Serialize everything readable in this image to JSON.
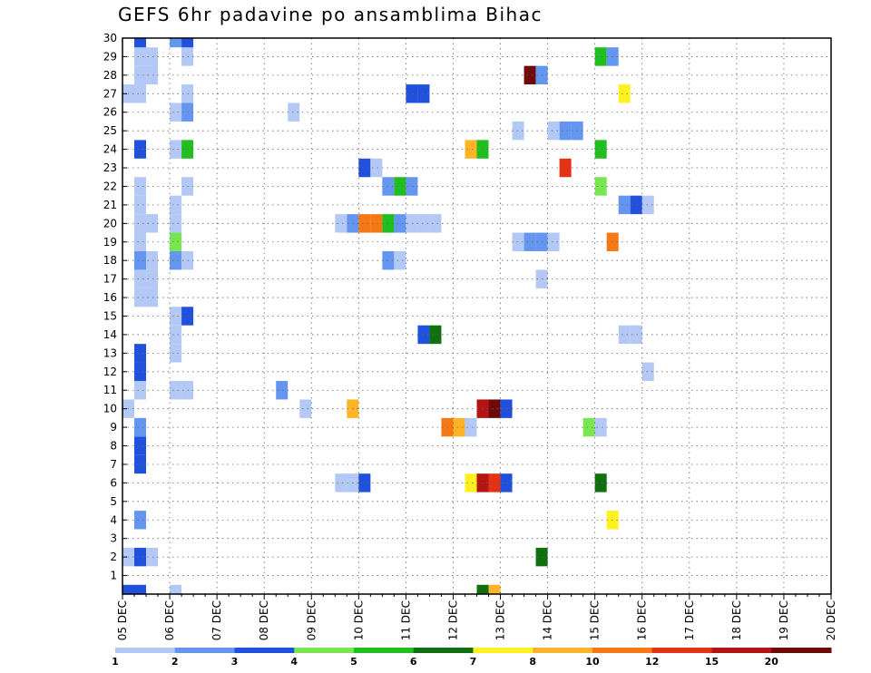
{
  "chart_data": {
    "type": "heatmap",
    "title": "GEFS 6hr padavine po ansamblima Bihac",
    "x_tick_labels": [
      "05 DEC",
      "06 DEC",
      "07 DEC",
      "08 DEC",
      "09 DEC",
      "10 DEC",
      "11 DEC",
      "12 DEC",
      "13 DEC",
      "14 DEC",
      "15 DEC",
      "16 DEC",
      "17 DEC",
      "18 DEC",
      "19 DEC",
      "20 DEC"
    ],
    "y_tick_labels": [
      "1",
      "2",
      "3",
      "4",
      "5",
      "6",
      "7",
      "8",
      "9",
      "10",
      "11",
      "12",
      "13",
      "14",
      "15",
      "16",
      "17",
      "18",
      "19",
      "20",
      "21",
      "22",
      "23",
      "24",
      "25",
      "26",
      "27",
      "28",
      "29",
      "30"
    ],
    "x_unit": "6-hour step from 05 DEC 00z",
    "xlim": [
      0,
      60
    ],
    "ylim": [
      0,
      30
    ],
    "grid": true,
    "legend": {
      "placement": "bottom",
      "colors": [
        "#b4c8f5",
        "#6496f0",
        "#2050dc",
        "#78e650",
        "#20be20",
        "#107010",
        "#fff020",
        "#ffb428",
        "#f57814",
        "#e63214",
        "#b41414",
        "#6e0a0a"
      ],
      "labels": [
        "1",
        "2",
        "3",
        "4",
        "5",
        "6",
        "7",
        "8",
        "10",
        "12",
        "15",
        "20"
      ]
    },
    "cells": [
      [
        0,
        0,
        3
      ],
      [
        0,
        2,
        1
      ],
      [
        0,
        10,
        1
      ],
      [
        0,
        27,
        1
      ],
      [
        1,
        0,
        3
      ],
      [
        1,
        2,
        3
      ],
      [
        1,
        4,
        2
      ],
      [
        1,
        7,
        3
      ],
      [
        1,
        8,
        3
      ],
      [
        1,
        9,
        2
      ],
      [
        1,
        11,
        1
      ],
      [
        1,
        12,
        3
      ],
      [
        1,
        13,
        3
      ],
      [
        1,
        16,
        1
      ],
      [
        1,
        17,
        1
      ],
      [
        1,
        18,
        2
      ],
      [
        1,
        19,
        1
      ],
      [
        1,
        20,
        1
      ],
      [
        1,
        21,
        1
      ],
      [
        1,
        22,
        1
      ],
      [
        1,
        24,
        3
      ],
      [
        1,
        27,
        1
      ],
      [
        1,
        28,
        1
      ],
      [
        1,
        29,
        1
      ],
      [
        1,
        30,
        3
      ],
      [
        2,
        2,
        1
      ],
      [
        2,
        16,
        1
      ],
      [
        2,
        17,
        1
      ],
      [
        2,
        18,
        1
      ],
      [
        2,
        20,
        1
      ],
      [
        2,
        28,
        1
      ],
      [
        2,
        29,
        1
      ],
      [
        4,
        0,
        1
      ],
      [
        4,
        11,
        1
      ],
      [
        4,
        13,
        1
      ],
      [
        4,
        14,
        1
      ],
      [
        4,
        15,
        1
      ],
      [
        4,
        18,
        2
      ],
      [
        4,
        19,
        4
      ],
      [
        4,
        20,
        1
      ],
      [
        4,
        21,
        1
      ],
      [
        4,
        24,
        1
      ],
      [
        4,
        26,
        1
      ],
      [
        4,
        30,
        2
      ],
      [
        5,
        11,
        1
      ],
      [
        5,
        15,
        3
      ],
      [
        5,
        18,
        1
      ],
      [
        5,
        22,
        1
      ],
      [
        5,
        24,
        5
      ],
      [
        5,
        26,
        2
      ],
      [
        5,
        27,
        1
      ],
      [
        5,
        29,
        1
      ],
      [
        5,
        30,
        3
      ],
      [
        13,
        11,
        2
      ],
      [
        14,
        26,
        1
      ],
      [
        15,
        10,
        1
      ],
      [
        18,
        6,
        1
      ],
      [
        18,
        20,
        1
      ],
      [
        19,
        6,
        1
      ],
      [
        19,
        10,
        8
      ],
      [
        19,
        20,
        2
      ],
      [
        20,
        6,
        3
      ],
      [
        20,
        20,
        10
      ],
      [
        20,
        23,
        3
      ],
      [
        21,
        20,
        10
      ],
      [
        21,
        23,
        1
      ],
      [
        22,
        18,
        2
      ],
      [
        22,
        20,
        5
      ],
      [
        22,
        22,
        2
      ],
      [
        23,
        18,
        1
      ],
      [
        23,
        20,
        2
      ],
      [
        23,
        22,
        5
      ],
      [
        24,
        20,
        1
      ],
      [
        24,
        22,
        2
      ],
      [
        24,
        27,
        3
      ],
      [
        25,
        14,
        3
      ],
      [
        25,
        20,
        1
      ],
      [
        25,
        27,
        3
      ],
      [
        26,
        14,
        6
      ],
      [
        26,
        20,
        1
      ],
      [
        27,
        9,
        10
      ],
      [
        28,
        9,
        8
      ],
      [
        29,
        6,
        7
      ],
      [
        29,
        9,
        1
      ],
      [
        29,
        24,
        8
      ],
      [
        30,
        0,
        6
      ],
      [
        30,
        6,
        15
      ],
      [
        30,
        10,
        15
      ],
      [
        30,
        24,
        5
      ],
      [
        31,
        0,
        8
      ],
      [
        31,
        6,
        12
      ],
      [
        31,
        10,
        20
      ],
      [
        32,
        6,
        3
      ],
      [
        32,
        10,
        3
      ],
      [
        33,
        19,
        1
      ],
      [
        33,
        25,
        1
      ],
      [
        34,
        19,
        2
      ],
      [
        34,
        28,
        20
      ],
      [
        35,
        2,
        6
      ],
      [
        35,
        17,
        1
      ],
      [
        35,
        19,
        2
      ],
      [
        35,
        28,
        2
      ],
      [
        36,
        19,
        1
      ],
      [
        36,
        25,
        1
      ],
      [
        37,
        23,
        12
      ],
      [
        37,
        25,
        2
      ],
      [
        38,
        25,
        2
      ],
      [
        39,
        9,
        4
      ],
      [
        40,
        6,
        6
      ],
      [
        40,
        9,
        1
      ],
      [
        40,
        22,
        4
      ],
      [
        40,
        24,
        5
      ],
      [
        40,
        29,
        5
      ],
      [
        41,
        4,
        7
      ],
      [
        41,
        19,
        10
      ],
      [
        41,
        29,
        2
      ],
      [
        42,
        14,
        1
      ],
      [
        42,
        21,
        2
      ],
      [
        42,
        27,
        7
      ],
      [
        43,
        14,
        1
      ],
      [
        43,
        21,
        3
      ],
      [
        44,
        12,
        1
      ],
      [
        44,
        21,
        1
      ]
    ]
  }
}
